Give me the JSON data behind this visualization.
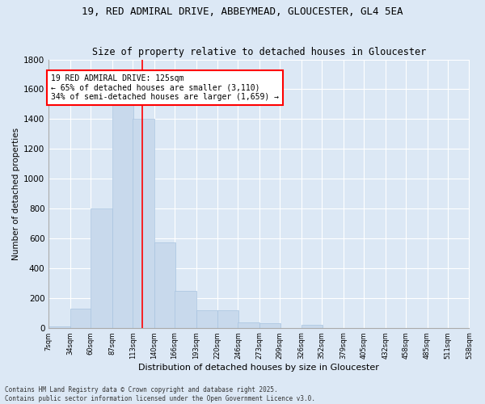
{
  "title1": "19, RED ADMIRAL DRIVE, ABBEYMEAD, GLOUCESTER, GL4 5EA",
  "title2": "Size of property relative to detached houses in Gloucester",
  "xlabel": "Distribution of detached houses by size in Gloucester",
  "ylabel": "Number of detached properties",
  "bar_color": "#c8d9ec",
  "bar_edgecolor": "#a8c4e0",
  "background_color": "#dce8f5",
  "fig_background_color": "#dce8f5",
  "grid_color": "#ffffff",
  "bins_left": [
    7,
    34,
    60,
    87,
    113,
    140,
    166,
    193,
    220,
    246,
    273,
    299,
    326,
    352,
    379,
    405,
    432,
    458,
    485,
    511,
    538
  ],
  "bar_heights": [
    10,
    130,
    800,
    1500,
    1400,
    575,
    250,
    115,
    115,
    35,
    30,
    0,
    20,
    0,
    0,
    0,
    0,
    0,
    0,
    0
  ],
  "bin_width": 27,
  "red_line_x": 125,
  "annotation_text": "19 RED ADMIRAL DRIVE: 125sqm\n← 65% of detached houses are smaller (3,110)\n34% of semi-detached houses are larger (1,659) →",
  "ylim": [
    0,
    1800
  ],
  "yticks": [
    0,
    200,
    400,
    600,
    800,
    1000,
    1200,
    1400,
    1600,
    1800
  ],
  "xtick_labels": [
    "7sqm",
    "34sqm",
    "60sqm",
    "87sqm",
    "113sqm",
    "140sqm",
    "166sqm",
    "193sqm",
    "220sqm",
    "246sqm",
    "273sqm",
    "299sqm",
    "326sqm",
    "352sqm",
    "379sqm",
    "405sqm",
    "432sqm",
    "458sqm",
    "485sqm",
    "511sqm",
    "538sqm"
  ],
  "footer1": "Contains HM Land Registry data © Crown copyright and database right 2025.",
  "footer2": "Contains public sector information licensed under the Open Government Licence v3.0."
}
